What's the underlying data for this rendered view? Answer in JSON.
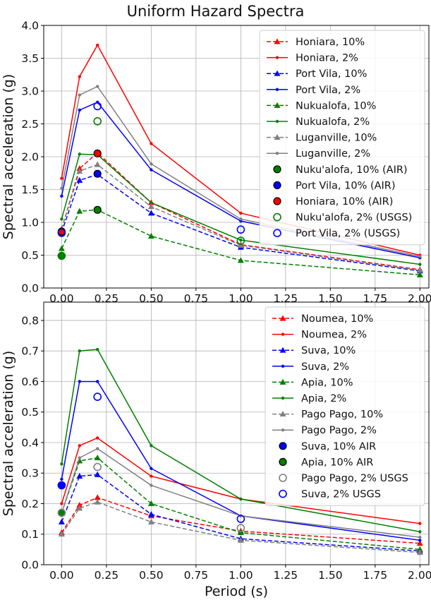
{
  "figure_title": "Uniform Hazard Spectra",
  "chart_data": [
    {
      "type": "line",
      "title": "Uniform Hazard Spectra",
      "xlabel": "",
      "ylabel": "Spectral acceleration (g)",
      "xlim": [
        -0.1,
        2.05
      ],
      "ylim": [
        0.0,
        4.0
      ],
      "xticks": [
        "0.00",
        "0.25",
        "0.50",
        "0.75",
        "1.00",
        "1.25",
        "1.50",
        "1.75",
        "2.00"
      ],
      "yticks": [
        "0.0",
        "0.5",
        "1.0",
        "1.5",
        "2.0",
        "2.5",
        "3.0",
        "3.5",
        "4.0"
      ],
      "grid": true,
      "legend_position": "top-right",
      "series": [
        {
          "name": "Honiara, 10%",
          "color": "#ff0000",
          "dash": true,
          "marker": "triangle",
          "x": [
            0,
            0.1,
            0.2,
            0.5,
            1.0,
            2.0
          ],
          "y": [
            0.9,
            1.82,
            2.06,
            1.3,
            0.66,
            0.28
          ]
        },
        {
          "name": "Honiara, 2%",
          "color": "#ff0000",
          "dash": false,
          "marker": "dot",
          "x": [
            0,
            0.1,
            0.2,
            0.5,
            1.0,
            2.0
          ],
          "y": [
            1.67,
            3.22,
            3.7,
            2.2,
            1.14,
            0.5
          ]
        },
        {
          "name": "Port Vila, 10%",
          "color": "#0000ff",
          "dash": true,
          "marker": "triangle",
          "x": [
            0,
            0.1,
            0.2,
            0.5,
            1.0,
            2.0
          ],
          "y": [
            0.85,
            1.64,
            1.73,
            1.14,
            0.62,
            0.26
          ]
        },
        {
          "name": "Port Vila, 2%",
          "color": "#0000ff",
          "dash": false,
          "marker": "dot",
          "x": [
            0,
            0.1,
            0.2,
            0.5,
            1.0,
            2.0
          ],
          "y": [
            1.4,
            2.71,
            2.83,
            1.8,
            1.02,
            0.46
          ]
        },
        {
          "name": "Nukualofa, 10%",
          "color": "#008000",
          "dash": true,
          "marker": "triangle",
          "x": [
            0,
            0.1,
            0.2,
            0.5,
            1.0,
            2.0
          ],
          "y": [
            0.6,
            1.17,
            1.19,
            0.79,
            0.42,
            0.2
          ]
        },
        {
          "name": "Nukualofa, 2%",
          "color": "#008000",
          "dash": false,
          "marker": "dot",
          "x": [
            0,
            0.1,
            0.2,
            0.5,
            1.0,
            2.0
          ],
          "y": [
            1.05,
            2.04,
            2.03,
            1.3,
            0.73,
            0.36
          ]
        },
        {
          "name": "Luganville, 10%",
          "color": "#808080",
          "dash": true,
          "marker": "triangle",
          "x": [
            0,
            0.1,
            0.2,
            0.5,
            1.0,
            2.0
          ],
          "y": [
            0.9,
            1.78,
            1.88,
            1.24,
            0.65,
            0.27
          ]
        },
        {
          "name": "Luganville, 2%",
          "color": "#808080",
          "dash": false,
          "marker": "dot",
          "x": [
            0,
            0.1,
            0.2,
            0.5,
            1.0,
            2.0
          ],
          "y": [
            1.52,
            2.94,
            3.07,
            1.89,
            1.05,
            0.48
          ]
        }
      ],
      "points": [
        {
          "name": "Nuku'alofa, 10% (AIR)",
          "color": "#008000",
          "filled": true,
          "x": [
            0,
            0.2
          ],
          "y": [
            0.49,
            1.19
          ]
        },
        {
          "name": "Port Vila, 10% (AIR)",
          "color": "#0000ff",
          "filled": true,
          "x": [
            0,
            0.2
          ],
          "y": [
            0.84,
            1.74
          ]
        },
        {
          "name": "Honiara, 10% (AIR)",
          "color": "#ff0000",
          "filled": true,
          "x": [
            0,
            0.2
          ],
          "y": [
            0.86,
            2.05
          ]
        },
        {
          "name": "Nuku'alofa, 2% (USGS)",
          "color": "#008000",
          "filled": false,
          "x": [
            0,
            0.2,
            1.0
          ],
          "y": [
            0.49,
            2.54,
            0.72
          ]
        },
        {
          "name": "Port Vila, 2% (USGS)",
          "color": "#0000ff",
          "filled": false,
          "x": [
            0,
            0.2,
            1.0
          ],
          "y": [
            0.84,
            2.77,
            0.89
          ]
        }
      ]
    },
    {
      "type": "line",
      "title": "",
      "xlabel": "Period (s)",
      "ylabel": "Spectral acceleration (g)",
      "xlim": [
        -0.1,
        2.05
      ],
      "ylim": [
        0.0,
        0.86
      ],
      "xticks": [
        "0.00",
        "0.25",
        "0.50",
        "0.75",
        "1.00",
        "1.25",
        "1.50",
        "1.75",
        "2.00"
      ],
      "yticks": [
        "0.0",
        "0.1",
        "0.2",
        "0.3",
        "0.4",
        "0.5",
        "0.6",
        "0.7",
        "0.8"
      ],
      "grid": true,
      "legend_position": "top-right",
      "series": [
        {
          "name": "Noumea, 10%",
          "color": "#ff0000",
          "dash": true,
          "marker": "triangle",
          "x": [
            0,
            0.1,
            0.2,
            0.5,
            1.0,
            2.0
          ],
          "y": [
            0.105,
            0.195,
            0.22,
            0.16,
            0.11,
            0.07
          ]
        },
        {
          "name": "Noumea, 2%",
          "color": "#ff0000",
          "dash": false,
          "marker": "dot",
          "x": [
            0,
            0.1,
            0.2,
            0.5,
            1.0,
            2.0
          ],
          "y": [
            0.2,
            0.39,
            0.415,
            0.29,
            0.215,
            0.135
          ]
        },
        {
          "name": "Suva, 10%",
          "color": "#0000ff",
          "dash": true,
          "marker": "triangle",
          "x": [
            0,
            0.1,
            0.2,
            0.5,
            1.0,
            2.0
          ],
          "y": [
            0.14,
            0.29,
            0.295,
            0.165,
            0.085,
            0.045
          ]
        },
        {
          "name": "Suva, 2%",
          "color": "#0000ff",
          "dash": false,
          "marker": "dot",
          "x": [
            0,
            0.1,
            0.2,
            0.5,
            1.0,
            2.0
          ],
          "y": [
            0.28,
            0.6,
            0.6,
            0.315,
            0.16,
            0.08
          ]
        },
        {
          "name": "Apia, 10%",
          "color": "#008000",
          "dash": true,
          "marker": "triangle",
          "x": [
            0,
            0.1,
            0.2,
            0.5,
            1.0,
            2.0
          ],
          "y": [
            0.17,
            0.34,
            0.35,
            0.2,
            0.105,
            0.05
          ]
        },
        {
          "name": "Apia, 2%",
          "color": "#008000",
          "dash": false,
          "marker": "dot",
          "x": [
            0,
            0.1,
            0.2,
            0.5,
            1.0,
            2.0
          ],
          "y": [
            0.33,
            0.7,
            0.705,
            0.39,
            0.215,
            0.108
          ]
        },
        {
          "name": "Pago Pago, 10%",
          "color": "#808080",
          "dash": true,
          "marker": "triangle",
          "x": [
            0,
            0.1,
            0.2,
            0.5,
            1.0,
            2.0
          ],
          "y": [
            0.1,
            0.185,
            0.205,
            0.14,
            0.08,
            0.04
          ]
        },
        {
          "name": "Pago Pago, 2%",
          "color": "#808080",
          "dash": false,
          "marker": "dot",
          "x": [
            0,
            0.1,
            0.2,
            0.5,
            1.0,
            2.0
          ],
          "y": [
            0.17,
            0.35,
            0.38,
            0.26,
            0.16,
            0.09
          ]
        }
      ],
      "points": [
        {
          "name": "Suva, 10% AIR",
          "color": "#0000ff",
          "filled": true,
          "x": [
            0
          ],
          "y": [
            0.26
          ]
        },
        {
          "name": "Apia, 10% AIR",
          "color": "#008000",
          "filled": true,
          "x": [
            0
          ],
          "y": [
            0.17
          ]
        },
        {
          "name": "Pago Pago, 2% USGS",
          "color": "#808080",
          "filled": false,
          "x": [
            0,
            0.2,
            1.0
          ],
          "y": [
            0.17,
            0.32,
            0.12
          ]
        },
        {
          "name": "Suva, 2% USGS",
          "color": "#0000ff",
          "filled": false,
          "x": [
            0,
            0.2,
            1.0
          ],
          "y": [
            0.26,
            0.55,
            0.15
          ]
        }
      ]
    }
  ]
}
